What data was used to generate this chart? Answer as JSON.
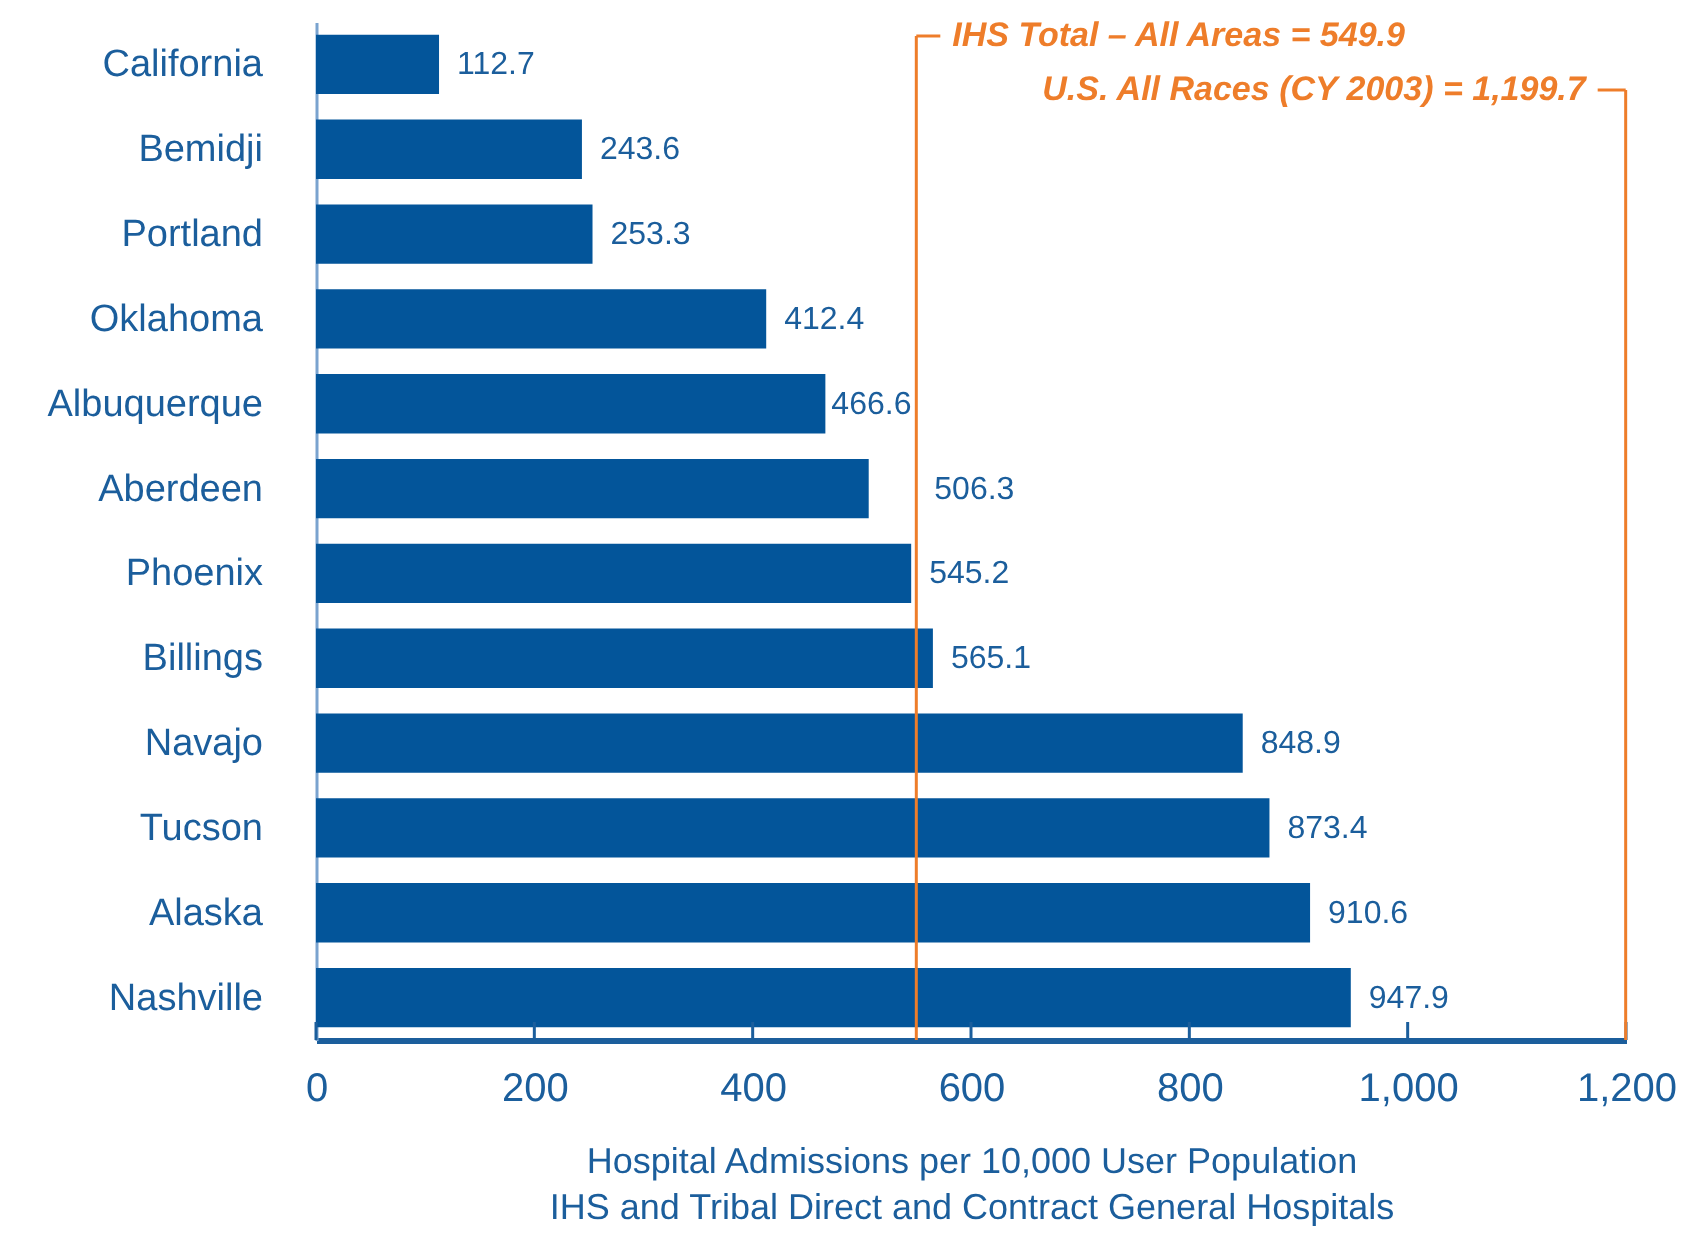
{
  "chart_data": {
    "type": "bar",
    "orientation": "horizontal",
    "categories": [
      "California",
      "Bemidji",
      "Portland",
      "Oklahoma",
      "Albuquerque",
      "Aberdeen",
      "Phoenix",
      "Billings",
      "Navajo",
      "Tucson",
      "Alaska",
      "Nashville"
    ],
    "values": [
      112.7,
      243.6,
      253.3,
      412.4,
      466.6,
      506.3,
      545.2,
      565.1,
      848.9,
      873.4,
      910.6,
      947.9
    ],
    "color": "#03559a",
    "xlabel": "Hospital Admissions per 10,000 User Population\nIHS and Tribal Direct and Contract General Hospitals",
    "xlim": [
      0,
      1200
    ],
    "xticks": [
      0,
      200,
      400,
      600,
      800,
      {
        "value": 1000,
        "label": "1,000"
      },
      {
        "value": 1200,
        "label": "1,200"
      }
    ],
    "ref_lines": [
      {
        "axis": "x",
        "value": 549.9,
        "label": "IHS Total – All Areas = 549.9",
        "color": "#ee7d2a"
      },
      {
        "axis": "x",
        "value": 1199.7,
        "label": "U.S. All Races (CY 2003) = 1,199.7",
        "color": "#ee7d2a"
      }
    ],
    "data_labels": true
  }
}
